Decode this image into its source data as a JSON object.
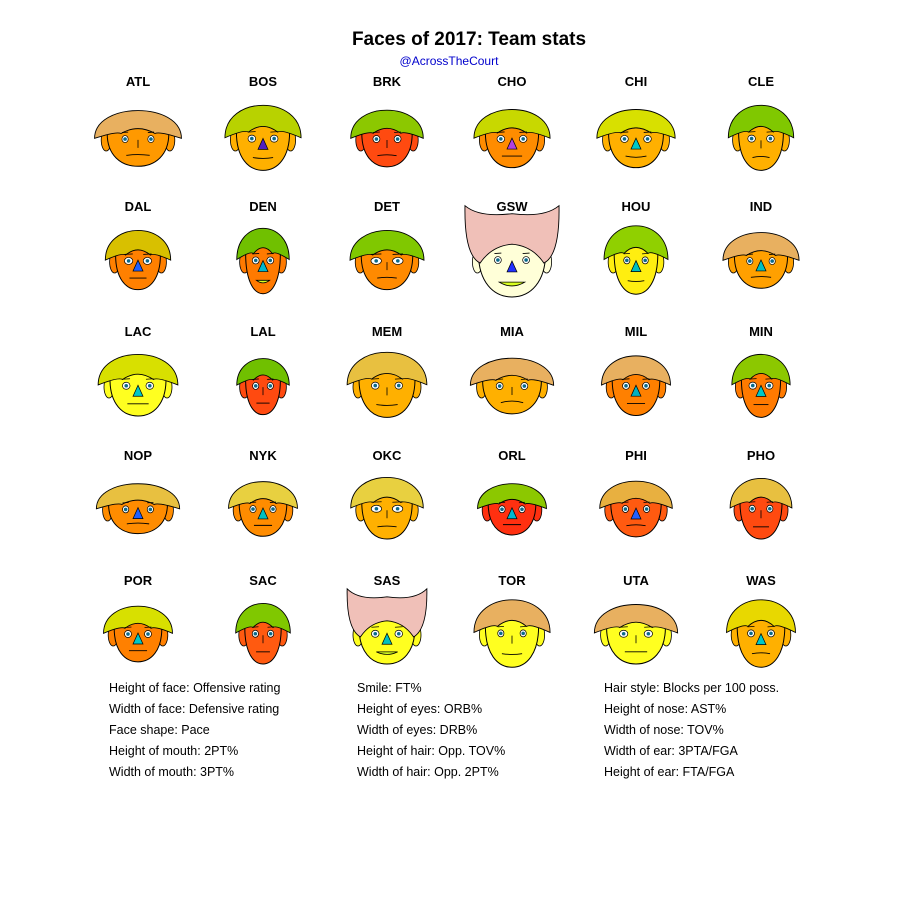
{
  "title": "Faces of 2017: Team stats",
  "subtitle": "@AcrossTheCourt",
  "chart_data": {
    "type": "chernoff-faces",
    "teams": [
      {
        "label": "ATL",
        "hair": "#e8b060",
        "face": "#ff9900",
        "w": 1.1,
        "h": 0.9,
        "hairH": 0.6,
        "eyeW": 0.6,
        "nose": "none",
        "noseColor": "",
        "smile": -0.2
      },
      {
        "label": "BOS",
        "hair": "#b8d200",
        "face": "#ffb000",
        "w": 0.95,
        "h": 1.05,
        "hairH": 0.8,
        "eyeW": 0.8,
        "nose": "tri",
        "noseColor": "#5020c0",
        "smile": 0.2
      },
      {
        "label": "BRK",
        "hair": "#8cc800",
        "face": "#ff4a10",
        "w": 0.9,
        "h": 0.92,
        "hairH": 0.6,
        "eyeW": 0.7,
        "nose": "none",
        "noseColor": "",
        "smile": -0.2
      },
      {
        "label": "CHO",
        "hair": "#c8d800",
        "face": "#ff8c00",
        "w": 0.95,
        "h": 0.95,
        "hairH": 0.6,
        "eyeW": 0.8,
        "nose": "tri",
        "noseColor": "#b040e0",
        "smile": 0.0
      },
      {
        "label": "CHI",
        "hair": "#d8e000",
        "face": "#ffb000",
        "w": 0.98,
        "h": 0.95,
        "hairH": 0.6,
        "eyeW": 0.8,
        "nose": "tri",
        "noseColor": "#00c8c8",
        "smile": 0.3
      },
      {
        "label": "CLE",
        "hair": "#80c800",
        "face": "#ffb000",
        "w": 0.8,
        "h": 1.05,
        "hairH": 0.8,
        "eyeW": 0.8,
        "nose": "none",
        "noseColor": "",
        "smile": -0.3
      },
      {
        "label": "DAL",
        "hair": "#d8c000",
        "face": "#ff8000",
        "w": 0.8,
        "h": 0.95,
        "hairH": 0.7,
        "eyeW": 0.9,
        "nose": "tri",
        "noseColor": "#2060ff",
        "smile": 0.0
      },
      {
        "label": "DEN",
        "hair": "#70c000",
        "face": "#ff7a00",
        "w": 0.62,
        "h": 1.1,
        "hairH": 0.6,
        "eyeW": 0.7,
        "nose": "tri",
        "noseColor": "#00b8d0",
        "smile": 0.4
      },
      {
        "label": "DET",
        "hair": "#80c800",
        "face": "#ff8a00",
        "w": 0.92,
        "h": 0.95,
        "hairH": 0.7,
        "eyeW": 1.2,
        "nose": "none",
        "noseColor": "",
        "smile": -0.2
      },
      {
        "label": "GSW",
        "hair": "#f0c0b8",
        "face": "#ffffd8",
        "w": 1.2,
        "h": 1.22,
        "hairH": 1.1,
        "eyeW": 0.7,
        "nose": "tri",
        "noseColor": "#2030ff",
        "smile": 0.6
      },
      {
        "label": "HOU",
        "hair": "#90d000",
        "face": "#ffee10",
        "w": 0.78,
        "h": 1.12,
        "hairH": 0.8,
        "eyeW": 0.6,
        "nose": "tri",
        "noseColor": "#00c0c0",
        "smile": 0.2
      },
      {
        "label": "IND",
        "hair": "#e8b060",
        "face": "#ffa000",
        "w": 0.95,
        "h": 0.9,
        "hairH": 0.6,
        "eyeW": 0.6,
        "nose": "tri",
        "noseColor": "#00c0c0",
        "smile": -0.2
      },
      {
        "label": "LAC",
        "hair": "#d8e000",
        "face": "#ffff20",
        "w": 1.0,
        "h": 1.0,
        "hairH": 0.7,
        "eyeW": 0.8,
        "nose": "tri",
        "noseColor": "#00c8c8",
        "smile": 0.0
      },
      {
        "label": "LAL",
        "hair": "#70c000",
        "face": "#ff4a10",
        "w": 0.62,
        "h": 0.95,
        "hairH": 0.4,
        "eyeW": 0.6,
        "nose": "none",
        "noseColor": "",
        "smile": 0.0
      },
      {
        "label": "MEM",
        "hair": "#e8c040",
        "face": "#ffb000",
        "w": 1.0,
        "h": 1.05,
        "hairH": 0.8,
        "eyeW": 0.8,
        "nose": "none",
        "noseColor": "",
        "smile": 0.2
      },
      {
        "label": "MIA",
        "hair": "#e8b060",
        "face": "#ffb000",
        "w": 1.05,
        "h": 0.92,
        "hairH": 0.5,
        "eyeW": 0.7,
        "nose": "none",
        "noseColor": "",
        "smile": -0.4
      },
      {
        "label": "MIL",
        "hair": "#e8b060",
        "face": "#ff8000",
        "w": 0.85,
        "h": 0.98,
        "hairH": 0.6,
        "eyeW": 0.7,
        "nose": "tri",
        "noseColor": "#00b0c0",
        "smile": 0.0
      },
      {
        "label": "MIN",
        "hair": "#8cc800",
        "face": "#ff7a00",
        "w": 0.7,
        "h": 1.05,
        "hairH": 0.6,
        "eyeW": 0.8,
        "nose": "tri",
        "noseColor": "#00c8c8",
        "smile": 0.0
      },
      {
        "label": "NOP",
        "hair": "#e8c040",
        "face": "#ff8c00",
        "w": 1.05,
        "h": 0.8,
        "hairH": 0.5,
        "eyeW": 0.6,
        "nose": "tri",
        "noseColor": "#2060ff",
        "smile": -0.2
      },
      {
        "label": "NYK",
        "hair": "#e8d040",
        "face": "#ff8c00",
        "w": 0.85,
        "h": 0.9,
        "hairH": 0.5,
        "eyeW": 0.6,
        "nose": "tri",
        "noseColor": "#00c0c0",
        "smile": 0.0
      },
      {
        "label": "OKC",
        "hair": "#e8d040",
        "face": "#ffb000",
        "w": 0.9,
        "h": 1.0,
        "hairH": 0.7,
        "eyeW": 1.2,
        "nose": "none",
        "noseColor": "",
        "smile": -0.2
      },
      {
        "label": "ORL",
        "hair": "#8cc800",
        "face": "#ff3010",
        "w": 0.85,
        "h": 0.85,
        "hairH": 0.4,
        "eyeW": 0.6,
        "nose": "tri",
        "noseColor": "#00b8d0",
        "smile": 0.0
      },
      {
        "label": "PHI",
        "hair": "#e8b040",
        "face": "#ff5a10",
        "w": 0.9,
        "h": 0.92,
        "hairH": 0.5,
        "eyeW": 0.6,
        "nose": "tri",
        "noseColor": "#2060ff",
        "smile": -0.2
      },
      {
        "label": "PHO",
        "hair": "#e8c040",
        "face": "#ff4a10",
        "w": 0.75,
        "h": 1.0,
        "hairH": 0.6,
        "eyeW": 0.6,
        "nose": "none",
        "noseColor": "",
        "smile": 0.0
      },
      {
        "label": "POR",
        "hair": "#d8e000",
        "face": "#ff8000",
        "w": 0.85,
        "h": 0.92,
        "hairH": 0.5,
        "eyeW": 0.7,
        "nose": "tri",
        "noseColor": "#00c8c8",
        "smile": 0.0
      },
      {
        "label": "SAC",
        "hair": "#80c800",
        "face": "#ff5a10",
        "w": 0.65,
        "h": 1.0,
        "hairH": 0.6,
        "eyeW": 0.6,
        "nose": "none",
        "noseColor": "",
        "smile": 0.0
      },
      {
        "label": "SAS",
        "hair": "#f0c0b8",
        "face": "#ffff20",
        "w": 1.0,
        "h": 1.0,
        "hairH": 0.8,
        "eyeW": 0.8,
        "nose": "tri",
        "noseColor": "#00c0c0",
        "smile": 0.4
      },
      {
        "label": "TOR",
        "hair": "#e8b060",
        "face": "#ffff20",
        "w": 0.95,
        "h": 1.12,
        "hairH": 0.7,
        "eyeW": 0.6,
        "nose": "none",
        "noseColor": "",
        "smile": 0.2
      },
      {
        "label": "UTA",
        "hair": "#e8b060",
        "face": "#ffff20",
        "w": 1.05,
        "h": 1.0,
        "hairH": 0.5,
        "eyeW": 0.9,
        "nose": "none",
        "noseColor": "",
        "smile": 0.0
      },
      {
        "label": "WAS",
        "hair": "#e8d800",
        "face": "#ffb000",
        "w": 0.85,
        "h": 1.12,
        "hairH": 0.7,
        "eyeW": 0.7,
        "nose": "tri",
        "noseColor": "#00c8c8",
        "smile": -0.2
      }
    ]
  },
  "legend": {
    "col1": [
      "Height of face: Offensive rating",
      "Width of face: Defensive rating",
      "Face shape: Pace",
      "Height of mouth: 2PT%",
      "Width of mouth: 3PT%"
    ],
    "col2": [
      "Smile: FT%",
      "Height of eyes: ORB%",
      "Width of eyes: DRB%",
      "Height of hair: Opp. TOV%",
      "Width of hair: Opp. 2PT%"
    ],
    "col3": [
      "Hair style: Blocks per 100 poss.",
      "Height of nose: AST%",
      "Width of nose: TOV%",
      "Width of ear: 3PTA/FGA",
      "Height of ear: FTA/FGA"
    ]
  }
}
